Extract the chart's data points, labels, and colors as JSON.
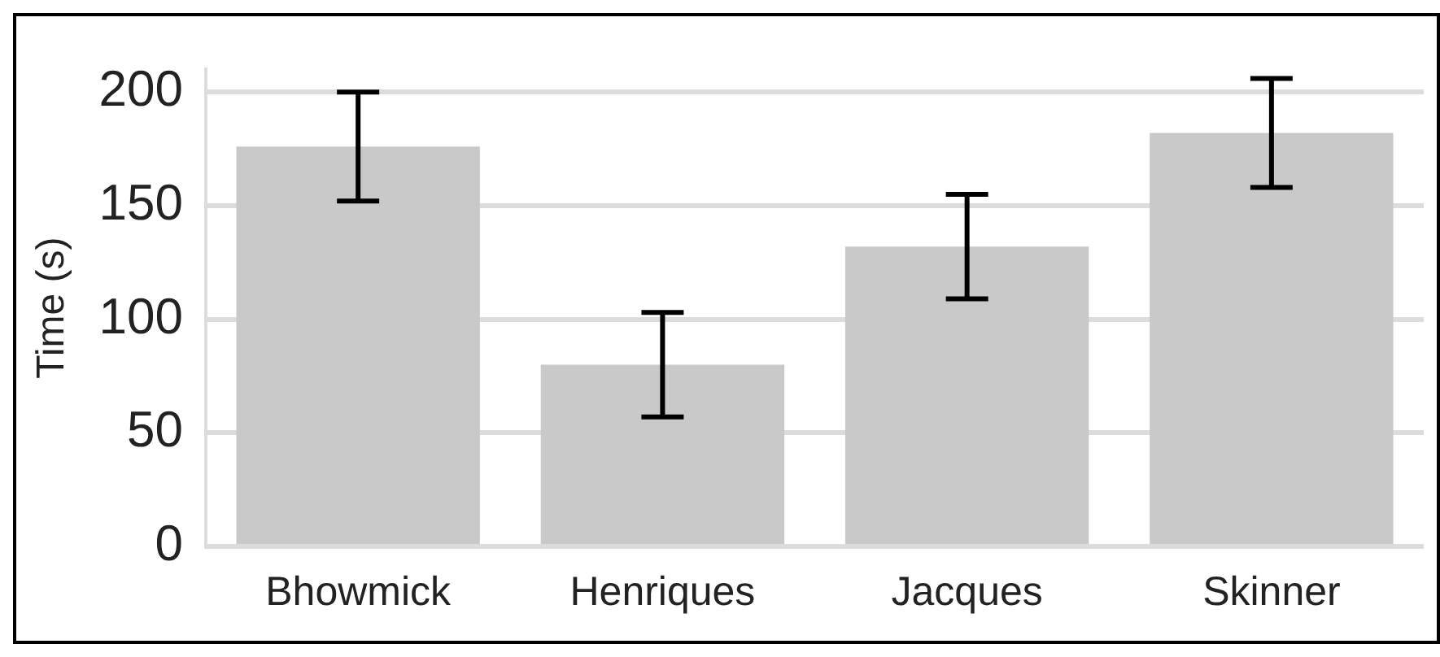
{
  "chart_data": {
    "type": "bar",
    "ylabel": "Time (s)",
    "categories": [
      "Bhowmick",
      "Henriques",
      "Jacques",
      "Skinner"
    ],
    "values": [
      176,
      80,
      132,
      182
    ],
    "errors": [
      24,
      23,
      23,
      24
    ],
    "color": "#c9c9c9",
    "ylim": [
      0,
      210
    ],
    "yticks": [
      0,
      50,
      100,
      150,
      200
    ],
    "grid": "y",
    "legend": false
  }
}
